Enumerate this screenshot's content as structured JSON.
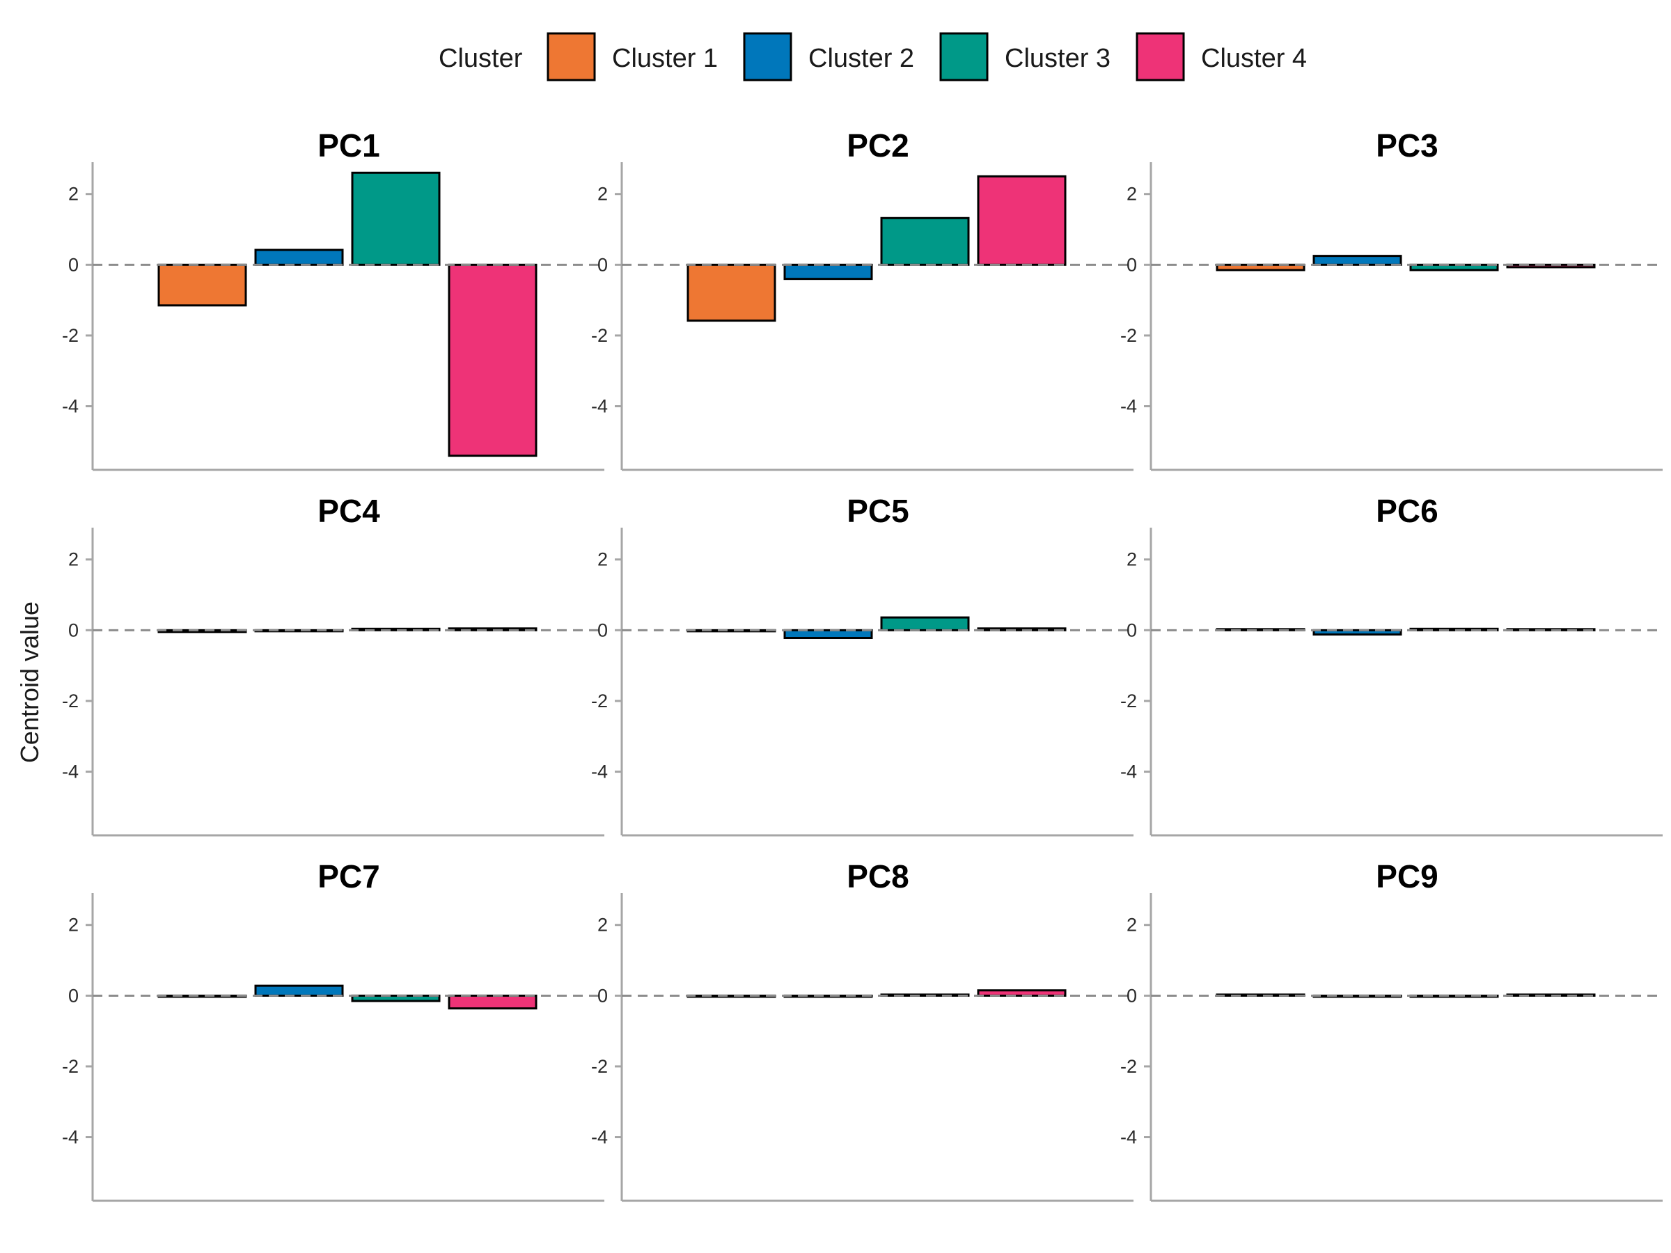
{
  "chart_data": {
    "type": "bar",
    "layout": "facet-grid-3x3",
    "ylabel": "Centroid value",
    "ylim": [
      -5.8,
      2.9
    ],
    "yticks": [
      2,
      0,
      -2,
      -4
    ],
    "ytick_labels": [
      "2",
      "0",
      "-2",
      "-4"
    ],
    "zero_line": "dashed",
    "grid": false,
    "legend": {
      "title": "Cluster",
      "position": "top",
      "entries": [
        {
          "label": "Cluster 1",
          "color": "#EE7733"
        },
        {
          "label": "Cluster 2",
          "color": "#0077BB"
        },
        {
          "label": "Cluster 3",
          "color": "#009988"
        },
        {
          "label": "Cluster 4",
          "color": "#EE3377"
        }
      ]
    },
    "series": [
      {
        "name": "Cluster 1",
        "color": "#EE7733"
      },
      {
        "name": "Cluster 2",
        "color": "#0077BB"
      },
      {
        "name": "Cluster 3",
        "color": "#009988"
      },
      {
        "name": "Cluster 4",
        "color": "#EE3377"
      }
    ],
    "facets": [
      {
        "title": "PC1",
        "values": [
          -1.15,
          0.42,
          2.6,
          -5.4
        ]
      },
      {
        "title": "PC2",
        "values": [
          -1.58,
          -0.4,
          1.32,
          2.5
        ]
      },
      {
        "title": "PC3",
        "values": [
          -0.15,
          0.25,
          -0.15,
          -0.07
        ]
      },
      {
        "title": "PC4",
        "values": [
          -0.05,
          -0.02,
          0.04,
          0.05
        ]
      },
      {
        "title": "PC5",
        "values": [
          -0.03,
          -0.22,
          0.36,
          0.05
        ]
      },
      {
        "title": "PC6",
        "values": [
          0.03,
          -0.12,
          0.04,
          0.03
        ]
      },
      {
        "title": "PC7",
        "values": [
          -0.02,
          0.28,
          -0.15,
          -0.36
        ]
      },
      {
        "title": "PC8",
        "values": [
          -0.02,
          -0.01,
          0.03,
          0.15
        ]
      },
      {
        "title": "PC9",
        "values": [
          0.03,
          -0.02,
          -0.02,
          0.03
        ]
      }
    ]
  }
}
